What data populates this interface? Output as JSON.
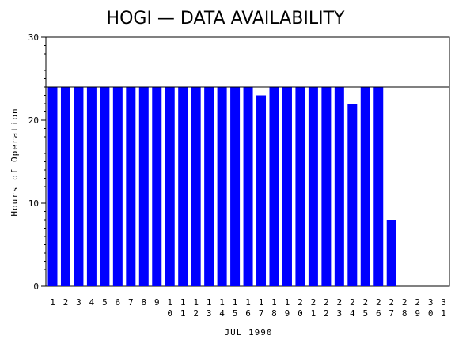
{
  "chart_data": {
    "type": "bar",
    "title": "HOGI — DATA AVAILABILITY",
    "xlabel": "JUL 1990",
    "ylabel": "Hours of Operation",
    "ylim": [
      0,
      30
    ],
    "yticks": [
      0,
      10,
      20,
      30
    ],
    "reference_line": 24,
    "bar_color": "#0000ff",
    "categories": [
      "1",
      "2",
      "3",
      "4",
      "5",
      "6",
      "7",
      "8",
      "9",
      "10",
      "11",
      "12",
      "13",
      "14",
      "15",
      "16",
      "17",
      "18",
      "19",
      "20",
      "21",
      "22",
      "23",
      "24",
      "25",
      "26",
      "27",
      "28",
      "29",
      "30",
      "31"
    ],
    "values": [
      24,
      24,
      24,
      24,
      24,
      24,
      24,
      24,
      24,
      24,
      24,
      24,
      24,
      24,
      24,
      24,
      23,
      24,
      24,
      24,
      24,
      24,
      24,
      22,
      24,
      24,
      8,
      0,
      0,
      0,
      0
    ]
  }
}
